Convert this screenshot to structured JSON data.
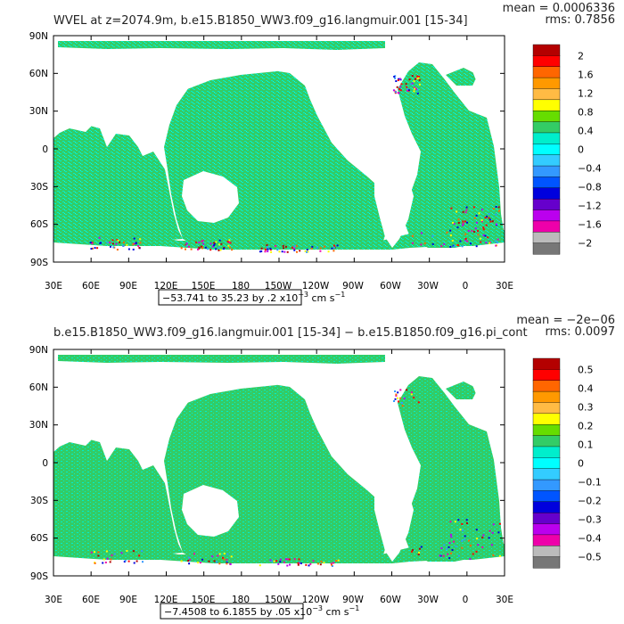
{
  "panels": [
    {
      "title": "WVEL at z=2074.9m, b.e15.B1850_WW3.f09_g16.langmuir.001 [15-34]",
      "mean": "mean = 0.0006336",
      "rms": "rms: 0.7856",
      "range_main": "−53.741 to 35.23 by .2 x10",
      "range_exp": "−3",
      "range_unit": " cm s",
      "range_unit_exp": "−1",
      "colorbar_labels": [
        "2",
        "1.6",
        "1.2",
        "0.8",
        "0.4",
        "0",
        "−0.4",
        "−0.8",
        "−1.2",
        "−1.6",
        "−2"
      ]
    },
    {
      "title": "b.e15.B1850_WW3.f09_g16.langmuir.001 [15-34] − b.e15.B1850.f09_g16.pi_cont",
      "mean": "mean = −2e−06",
      "rms": "rms: 0.0097",
      "range_main": "−7.4508 to 6.1855 by .05 x10",
      "range_exp": "−3",
      "range_unit": " cm s",
      "range_unit_exp": "−1",
      "colorbar_labels": [
        "0.5",
        "0.4",
        "0.3",
        "0.2",
        "0.1",
        "0",
        "−0.1",
        "−0.2",
        "−0.3",
        "−0.4",
        "−0.5"
      ]
    }
  ],
  "lat_labels": [
    "90N",
    "60N",
    "30N",
    "0",
    "30S",
    "60S",
    "90S"
  ],
  "lon_labels": [
    "30E",
    "60E",
    "90E",
    "120E",
    "150E",
    "180",
    "150W",
    "120W",
    "90W",
    "60W",
    "30W",
    "0",
    "30E"
  ],
  "colorbar_colors": [
    "#b40000",
    "#ff0000",
    "#ff6600",
    "#ff9900",
    "#ffbb44",
    "#ffff00",
    "#66dd00",
    "#33cc66",
    "#00eecc",
    "#00ffff",
    "#33ccff",
    "#3399ff",
    "#0055ff",
    "#0000dd",
    "#6600cc",
    "#bb00ee",
    "#ee00aa",
    "#bbbbbb",
    "#777777"
  ],
  "ocean_colors": {
    "main": "#33cc66",
    "cyan": "#00eecc",
    "light_cyan": "#00ffff"
  }
}
